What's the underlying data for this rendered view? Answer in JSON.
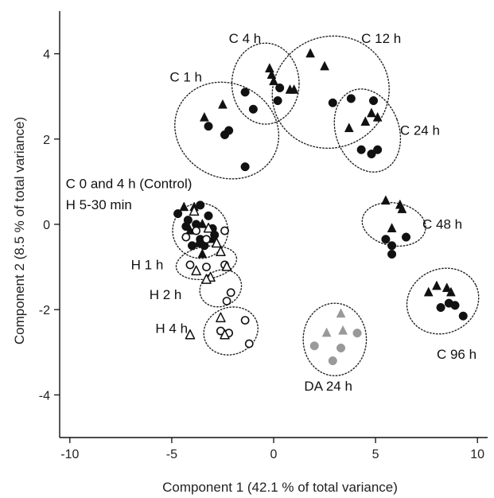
{
  "chart_data": {
    "type": "scatter",
    "title": "",
    "xlabel": "Component 1 (42.1 % of total variance)",
    "ylabel": "Component 2 (8.5 % of total variance)",
    "xlim": [
      -10.5,
      10.5
    ],
    "ylim": [
      -5,
      5
    ],
    "xticks": [
      -10,
      -5,
      0,
      5,
      10
    ],
    "yticks": [
      -4,
      -2,
      0,
      2,
      4
    ],
    "grid": false,
    "colors": {
      "black": "#111111",
      "grey": "#999999"
    },
    "series": [
      {
        "marker": "filled-circle",
        "color": "black",
        "points": [
          [
            -3.2,
            2.3
          ],
          [
            -2.4,
            2.1
          ],
          [
            -2.2,
            2.2
          ],
          [
            -1.4,
            1.35
          ],
          [
            -1.4,
            3.1
          ],
          [
            -1.0,
            2.7
          ],
          [
            0.3,
            3.2
          ],
          [
            0.2,
            2.9
          ],
          [
            2.9,
            2.85
          ],
          [
            3.8,
            2.95
          ],
          [
            4.9,
            2.9
          ],
          [
            4.3,
            1.75
          ],
          [
            4.8,
            1.65
          ],
          [
            5.1,
            1.75
          ],
          [
            5.5,
            -0.35
          ],
          [
            5.8,
            -0.5
          ],
          [
            6.5,
            -0.3
          ],
          [
            5.8,
            -0.7
          ],
          [
            8.2,
            -1.95
          ],
          [
            8.6,
            -1.85
          ],
          [
            8.9,
            -1.9
          ],
          [
            9.3,
            -2.15
          ],
          [
            -4.7,
            0.25
          ],
          [
            -4.3,
            -0.05
          ],
          [
            -4.2,
            0.1
          ],
          [
            -3.8,
            0.0
          ],
          [
            -3.6,
            -0.35
          ],
          [
            -3.4,
            -0.5
          ],
          [
            -4.0,
            -0.5
          ],
          [
            -3.0,
            -0.1
          ],
          [
            -3.2,
            0.2
          ],
          [
            -3.6,
            0.45
          ],
          [
            -2.9,
            -0.25
          ]
        ]
      },
      {
        "marker": "filled-triangle",
        "color": "black",
        "points": [
          [
            -3.4,
            2.5
          ],
          [
            -2.5,
            2.8
          ],
          [
            -0.2,
            3.65
          ],
          [
            0.0,
            3.35
          ],
          [
            -0.1,
            3.5
          ],
          [
            0.8,
            3.15
          ],
          [
            1.8,
            4.0
          ],
          [
            2.5,
            3.7
          ],
          [
            1.0,
            3.15
          ],
          [
            3.7,
            2.25
          ],
          [
            4.5,
            2.4
          ],
          [
            4.8,
            2.6
          ],
          [
            5.1,
            2.5
          ],
          [
            5.5,
            0.55
          ],
          [
            6.2,
            0.45
          ],
          [
            6.3,
            0.35
          ],
          [
            5.8,
            -0.1
          ],
          [
            7.6,
            -1.6
          ],
          [
            8.0,
            -1.45
          ],
          [
            8.5,
            -1.5
          ],
          [
            8.7,
            -1.6
          ],
          [
            -4.4,
            0.4
          ],
          [
            -3.9,
            0.4
          ],
          [
            -3.5,
            0.0
          ],
          [
            -3.5,
            -0.7
          ],
          [
            -3.0,
            -0.35
          ],
          [
            -3.7,
            -0.45
          ],
          [
            -4.1,
            -0.15
          ]
        ]
      },
      {
        "marker": "open-circle",
        "color": "black",
        "points": [
          [
            -4.3,
            -0.3
          ],
          [
            -3.8,
            -0.15
          ],
          [
            -3.3,
            -0.35
          ],
          [
            -2.4,
            -0.15
          ],
          [
            -4.1,
            -0.95
          ],
          [
            -3.3,
            -1.0
          ],
          [
            -2.4,
            -0.95
          ],
          [
            -2.1,
            -1.6
          ],
          [
            -2.3,
            -1.8
          ],
          [
            -2.6,
            -2.5
          ],
          [
            -2.2,
            -2.55
          ],
          [
            -1.4,
            -2.25
          ],
          [
            -1.2,
            -2.8
          ]
        ]
      },
      {
        "marker": "open-triangle",
        "color": "black",
        "points": [
          [
            -3.9,
            0.3
          ],
          [
            -3.2,
            -0.1
          ],
          [
            -2.8,
            -0.45
          ],
          [
            -2.6,
            -0.65
          ],
          [
            -3.8,
            -1.1
          ],
          [
            -3.1,
            -1.25
          ],
          [
            -2.3,
            -1.0
          ],
          [
            -3.3,
            -1.3
          ],
          [
            -2.6,
            -2.2
          ],
          [
            -4.1,
            -2.6
          ],
          [
            -2.4,
            -2.6
          ]
        ]
      },
      {
        "marker": "filled-circle",
        "color": "grey",
        "points": [
          [
            2.0,
            -2.85
          ],
          [
            3.3,
            -2.9
          ],
          [
            2.9,
            -3.2
          ],
          [
            4.1,
            -2.55
          ]
        ]
      },
      {
        "marker": "filled-triangle",
        "color": "grey",
        "points": [
          [
            2.6,
            -2.55
          ],
          [
            3.3,
            -2.1
          ],
          [
            3.4,
            -2.5
          ]
        ]
      }
    ],
    "groups": [
      {
        "label": "C 1 h",
        "ellipse": {
          "cx": -2.3,
          "cy": 2.2,
          "rx": 2.3,
          "ry": 1.25,
          "angle": -62
        },
        "label_pos": [
          -5.1,
          3.35
        ]
      },
      {
        "label": "C 4 h",
        "ellipse": {
          "cx": -0.4,
          "cy": 3.3,
          "rx": 1.65,
          "ry": 0.95,
          "angle": 0
        },
        "label_pos": [
          -2.2,
          4.25
        ]
      },
      {
        "label": "C 12 h",
        "ellipse": {
          "cx": 2.8,
          "cy": 3.1,
          "rx": 2.9,
          "ry": 1.3,
          "angle": -25
        },
        "label_pos": [
          4.3,
          4.25
        ]
      },
      {
        "label": "C 24 h",
        "ellipse": {
          "cx": 4.6,
          "cy": 2.2,
          "rx": 1.55,
          "ry": 1.0,
          "angle": -20
        },
        "label_pos": [
          6.2,
          2.1
        ]
      },
      {
        "label": "C 48 h",
        "ellipse": {
          "cx": 5.9,
          "cy": 0.0,
          "rx": 1.05,
          "ry": 0.75,
          "angle": -80
        },
        "label_pos": [
          7.3,
          -0.1
        ]
      },
      {
        "label": "C 96 h",
        "ellipse": {
          "cx": 8.3,
          "cy": -1.8,
          "rx": 1.8,
          "ry": 0.75,
          "angle": -25
        },
        "label_pos": [
          8.0,
          -3.15
        ]
      },
      {
        "label": "DA 24 h",
        "ellipse": {
          "cx": 3.0,
          "cy": -2.7,
          "rx": 1.55,
          "ry": 0.85,
          "angle": 0
        },
        "label_pos": [
          1.5,
          -3.9
        ]
      },
      {
        "label": "H 4 h",
        "ellipse": {
          "cx": -2.1,
          "cy": -2.5,
          "rx": 1.35,
          "ry": 0.55,
          "angle": -20
        },
        "label_pos": [
          -5.8,
          -2.55
        ]
      },
      {
        "label": "H 2 h",
        "ellipse": {
          "cx": -2.6,
          "cy": -1.5,
          "rx": 1.05,
          "ry": 0.42,
          "angle": -25
        },
        "label_pos": [
          -6.1,
          -1.75
        ]
      },
      {
        "label": "H 1 h",
        "ellipse": {
          "cx": -3.3,
          "cy": -0.9,
          "rx": 1.5,
          "ry": 0.38,
          "angle": -10
        },
        "label_pos": [
          -7.0,
          -1.05
        ]
      },
      {
        "label": "C 0 and 4 h (Control)",
        "ellipse": {
          "cx": -3.6,
          "cy": -0.15,
          "rx": 1.35,
          "ry": 0.65,
          "angle": -55
        },
        "label_pos": [
          -10.2,
          0.85
        ]
      }
    ],
    "extra_labels": [
      {
        "text": "H 5-30 min",
        "pos": [
          -10.2,
          0.35
        ]
      }
    ]
  }
}
